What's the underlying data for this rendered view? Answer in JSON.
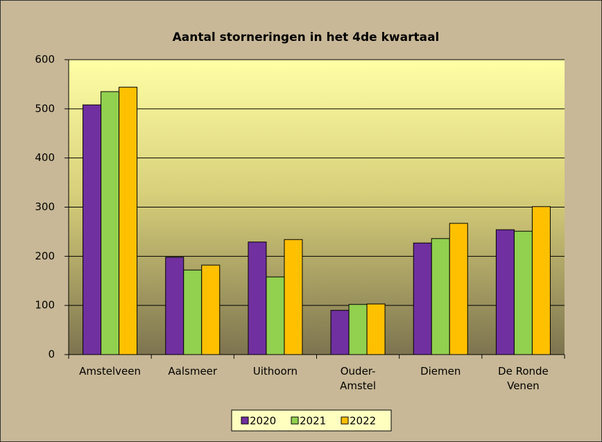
{
  "chart_data": {
    "type": "bar",
    "title": "Aantal storneringen in het 4de kwartaal",
    "categories": [
      "Amstelveen",
      "Aalsmeer",
      "Uithoorn",
      "Ouder-Amstel",
      "Diemen",
      "De Ronde Venen"
    ],
    "series": [
      {
        "name": "2020",
        "color": "#7030a0",
        "values": [
          508,
          198,
          229,
          90,
          227,
          254
        ]
      },
      {
        "name": "2021",
        "color": "#92d050",
        "values": [
          535,
          172,
          158,
          102,
          236,
          251
        ]
      },
      {
        "name": "2022",
        "color": "#ffc000",
        "values": [
          544,
          182,
          234,
          103,
          267,
          301
        ]
      }
    ],
    "ylim": [
      0,
      600
    ],
    "yticks": [
      0,
      100,
      200,
      300,
      400,
      500,
      600
    ],
    "grid": true,
    "legend": "bottom"
  }
}
